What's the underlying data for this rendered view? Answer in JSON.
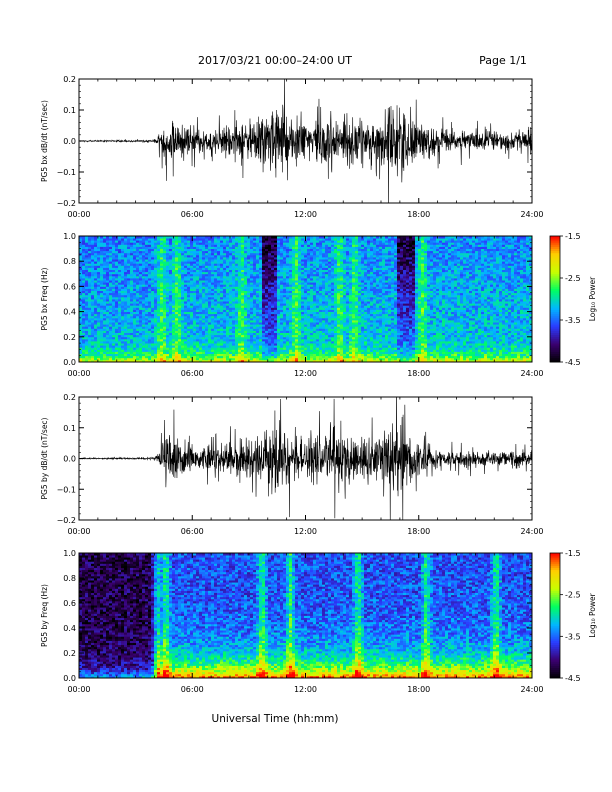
{
  "header": {
    "title": "2017/03/21   00:00–24:00 UT",
    "page": "Page 1/1"
  },
  "footer": {
    "xlabel": "Universal Time (hh:mm)"
  },
  "colorbar": {
    "label": "Log₁₀ Power",
    "ticks": [
      "-1.5",
      "-2.5",
      "-3.5",
      "-4.5"
    ],
    "range": [
      -4.5,
      -1.5
    ],
    "colors": [
      "#000000",
      "#3a0070",
      "#2a3cff",
      "#00b8ff",
      "#00ff60",
      "#c8ff00",
      "#ffd000",
      "#ff0000"
    ]
  },
  "chart_data": [
    {
      "type": "line",
      "ylabel": "PG5 bx dB/dt (nT/sec)",
      "ylim": [
        -0.2,
        0.2
      ],
      "yticks": [
        "0.2",
        "0.1",
        "0.0",
        "−0.1",
        "−0.2"
      ],
      "xlim": [
        "00:00",
        "24:00"
      ],
      "xticks": [
        "00:00",
        "06:00",
        "12:00",
        "18:00",
        "24:00"
      ],
      "x_hours": [
        0,
        2,
        4,
        4.2,
        4.5,
        5,
        6,
        7,
        8,
        9,
        9.5,
        10,
        10.5,
        11,
        11.5,
        12,
        13,
        14,
        15,
        16,
        16.5,
        17,
        18,
        19,
        20,
        21,
        22,
        23,
        24
      ],
      "envelope": [
        0.003,
        0.004,
        0.006,
        0.03,
        0.09,
        0.13,
        0.07,
        0.08,
        0.1,
        0.12,
        0.16,
        0.15,
        0.2,
        0.17,
        0.15,
        0.12,
        0.13,
        0.14,
        0.12,
        0.11,
        0.2,
        0.2,
        0.11,
        0.07,
        0.06,
        0.06,
        0.05,
        0.05,
        0.08
      ]
    },
    {
      "type": "heatmap",
      "ylabel": "PG5 bx Freq (Hz)",
      "ylim": [
        0.0,
        1.0
      ],
      "yticks": [
        "1.0",
        "0.8",
        "0.6",
        "0.4",
        "0.2",
        "0.0"
      ],
      "xlim": [
        "00:00",
        "24:00"
      ],
      "xticks": [
        "00:00",
        "06:00",
        "12:00",
        "18:00",
        "24:00"
      ],
      "zlim": [
        -4.5,
        -1.5
      ],
      "bright_stripes_hours": [
        4.4,
        5.2,
        8.6,
        11.5,
        13.8,
        14.6,
        18.2
      ],
      "dark_bands_hours": [
        [
          9.7,
          10.5
        ],
        [
          16.8,
          17.8
        ]
      ]
    },
    {
      "type": "line",
      "ylabel": "PG5 by dB/dt (nT/sec)",
      "ylim": [
        -0.2,
        0.2
      ],
      "yticks": [
        "0.2",
        "0.1",
        "0.0",
        "−0.1",
        "−0.2"
      ],
      "xlim": [
        "00:00",
        "24:00"
      ],
      "xticks": [
        "00:00",
        "06:00",
        "12:00",
        "18:00",
        "24:00"
      ],
      "x_hours": [
        0,
        2,
        4,
        4.2,
        4.5,
        5,
        6,
        7,
        8,
        9,
        9.5,
        10,
        10.5,
        11,
        11.5,
        12,
        13,
        14,
        15,
        16,
        16.5,
        17,
        18,
        19,
        20,
        21,
        22,
        23,
        24
      ],
      "envelope": [
        0.003,
        0.004,
        0.006,
        0.03,
        0.1,
        0.14,
        0.06,
        0.07,
        0.09,
        0.11,
        0.12,
        0.14,
        0.2,
        0.16,
        0.13,
        0.11,
        0.16,
        0.15,
        0.12,
        0.13,
        0.2,
        0.2,
        0.1,
        0.05,
        0.05,
        0.05,
        0.04,
        0.04,
        0.05
      ]
    },
    {
      "type": "heatmap",
      "ylabel": "PG5 by Freq (Hz)",
      "ylim": [
        0.0,
        1.0
      ],
      "yticks": [
        "1.0",
        "0.8",
        "0.6",
        "0.4",
        "0.2",
        "0.0"
      ],
      "xlim": [
        "00:00",
        "24:00"
      ],
      "xticks": [
        "00:00",
        "06:00",
        "12:00",
        "18:00",
        "24:00"
      ],
      "zlim": [
        -4.5,
        -1.5
      ],
      "bright_stripes_hours": [
        4.1,
        4.6,
        9.7,
        11.2,
        14.8,
        18.4,
        22.1
      ],
      "dark_bands_hours": [
        [
          0.0,
          4.0
        ]
      ]
    }
  ]
}
